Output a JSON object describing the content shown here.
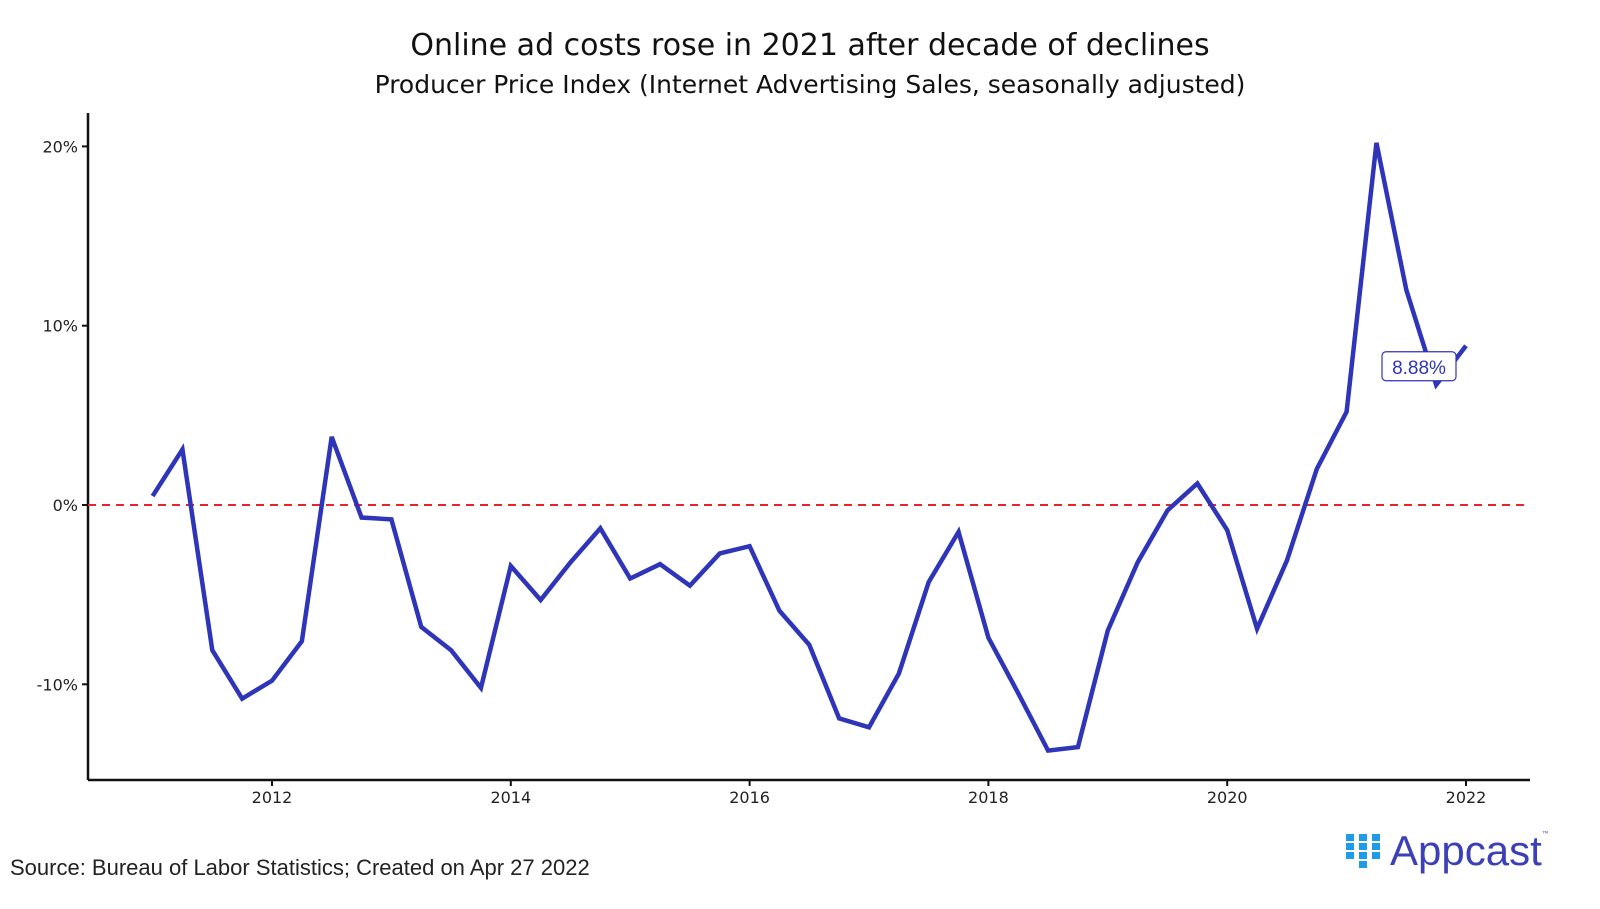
{
  "chart_data": {
    "type": "line",
    "title": "Online ad costs rose in 2021 after decade of declines",
    "subtitle": "Producer Price Index (Internet Advertising Sales, seasonally adjusted)",
    "xlabel": "",
    "ylabel": "",
    "xlim": [
      2010.75,
      2022.25
    ],
    "ylim": [
      -15.5,
      22
    ],
    "x_ticks": [
      2012,
      2014,
      2016,
      2018,
      2020,
      2022
    ],
    "x_tick_labels": [
      "2012",
      "2014",
      "2016",
      "2018",
      "2020",
      "2022"
    ],
    "y_ticks": [
      -10,
      0,
      10,
      20
    ],
    "y_tick_labels": [
      "-10%",
      "0%",
      "10%",
      "20%"
    ],
    "grid": false,
    "reference_line": {
      "y": 0,
      "color": "#e3262b",
      "style": "dashed"
    },
    "series": [
      {
        "color": "#2e35b8",
        "x": [
          2011.0,
          2011.25,
          2011.5,
          2011.75,
          2012.0,
          2012.25,
          2012.5,
          2012.75,
          2013.0,
          2013.25,
          2013.5,
          2013.75,
          2014.0,
          2014.25,
          2014.5,
          2014.75,
          2015.0,
          2015.25,
          2015.5,
          2015.75,
          2016.0,
          2016.25,
          2016.5,
          2016.75,
          2017.0,
          2017.25,
          2017.5,
          2017.75,
          2018.0,
          2018.25,
          2018.5,
          2018.75,
          2019.0,
          2019.25,
          2019.5,
          2019.75,
          2020.0,
          2020.25,
          2020.5,
          2020.75,
          2021.0,
          2021.25,
          2021.5,
          2021.75,
          2022.0
        ],
        "y": [
          0.5,
          3.1,
          -8.1,
          -10.8,
          -9.8,
          -7.6,
          3.8,
          -0.7,
          -0.8,
          -6.8,
          -8.1,
          -10.2,
          -3.4,
          -5.3,
          -3.2,
          -1.3,
          -4.1,
          -3.3,
          -4.5,
          -2.7,
          -2.3,
          -5.9,
          -7.8,
          -11.9,
          -12.4,
          -9.4,
          -4.3,
          -1.5,
          -7.4,
          -10.5,
          -13.7,
          -13.5,
          -7.0,
          -3.2,
          -0.3,
          1.2,
          -1.4,
          -6.9,
          -3.1,
          2.0,
          5.2,
          20.2,
          12.0,
          6.7,
          8.88
        ]
      }
    ],
    "annotation": {
      "text": "8.88%",
      "x": 2022.0,
      "y": 8.88
    }
  },
  "footer": {
    "source": "Source: Bureau of Labor Statistics; Created on Apr 27 2022",
    "logo_text": "Appcast",
    "logo_tm": "™",
    "logo_color": "#3b3fb8",
    "logo_mark_color": "#1e9be9"
  }
}
